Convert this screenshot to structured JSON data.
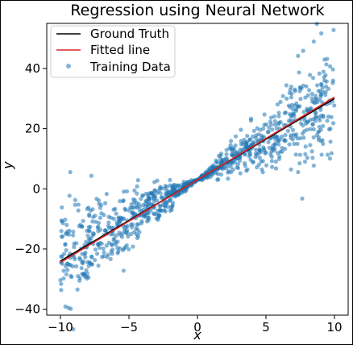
{
  "chart_data": {
    "type": "scatter",
    "title": "Regression using Neural Network",
    "xlabel": "x",
    "ylabel": "y",
    "xlim": [
      -11,
      11
    ],
    "ylim": [
      -42,
      55
    ],
    "xticks": [
      -10,
      -5,
      0,
      5,
      10
    ],
    "yticks": [
      -40,
      -20,
      0,
      20,
      40
    ],
    "xtick_labels": [
      "−10",
      "−5",
      "0",
      "5",
      "10"
    ],
    "ytick_labels": [
      "−40",
      "−20",
      "0",
      "20",
      "40"
    ],
    "grid": false,
    "legend_position": "top-left",
    "series": [
      {
        "name": "Ground Truth",
        "kind": "line",
        "color": "#000000",
        "x": [
          -10,
          10
        ],
        "y": [
          -24,
          30
        ]
      },
      {
        "name": "Fitted line",
        "kind": "line",
        "color": "#d62728",
        "x": [
          -10,
          10
        ],
        "y": [
          -24.5,
          30.5
        ]
      },
      {
        "name": "Training Data",
        "kind": "scatter",
        "color": "#1f77b4",
        "count": 1000,
        "x_range": [
          -10,
          10
        ],
        "trend": {
          "slope": 2.7,
          "intercept": 3
        },
        "noise_slope": 1.05
      }
    ]
  }
}
